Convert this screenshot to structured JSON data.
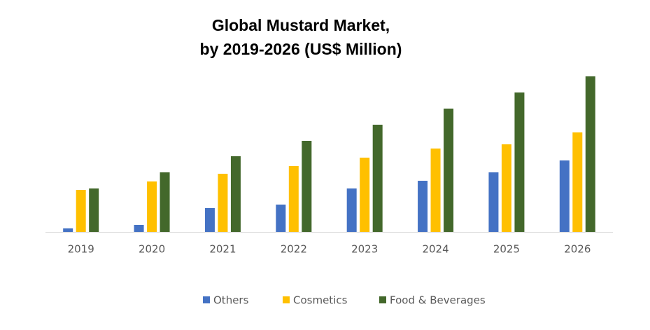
{
  "chart_data": {
    "type": "bar",
    "title": [
      "Global Mustard Market,",
      "by 2019-2026 (US$ Million)"
    ],
    "categories": [
      "2019",
      "2020",
      "2021",
      "2022",
      "2023",
      "2024",
      "2025",
      "2026"
    ],
    "series": [
      {
        "name": "Others",
        "color": "#4472c4",
        "values": [
          5,
          10,
          34,
          39,
          62,
          73,
          85,
          102
        ]
      },
      {
        "name": "Cosmetics",
        "color": "#ffc000",
        "values": [
          60,
          72,
          83,
          94,
          106,
          119,
          125,
          142
        ]
      },
      {
        "name": "Food & Beverages",
        "color": "#43682b",
        "values": [
          62,
          85,
          108,
          130,
          153,
          176,
          199,
          222
        ]
      }
    ],
    "ylim": [
      0,
      231
    ],
    "grid": false,
    "legend": "bottom"
  }
}
